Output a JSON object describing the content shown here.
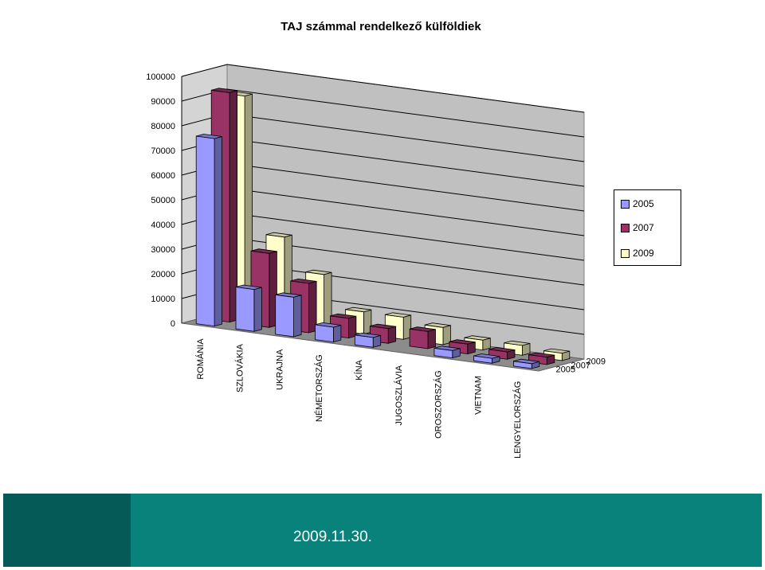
{
  "footer": {
    "date": "2009.11.30."
  },
  "chart_data": {
    "type": "bar",
    "title": "TAJ számmal rendelkező külföldiek",
    "categories": [
      "ROMÁNIA",
      "SZLOVÁKIA",
      "UKRAJNA",
      "NÉMETORSZÁG",
      "KÍNA",
      "JUGOSZLÁVIA",
      "OROSZORSZÁG",
      "VIETNAM",
      "LENGYELORSZÁG"
    ],
    "series": [
      {
        "name": "2005",
        "color": "#9999ff",
        "values": [
          76000,
          17000,
          16000,
          6000,
          4000,
          0,
          3000,
          2000,
          2000
        ]
      },
      {
        "name": "2007",
        "color": "#993366",
        "values": [
          93000,
          30000,
          20000,
          8000,
          6000,
          7000,
          4000,
          3000,
          3000
        ]
      },
      {
        "name": "2009",
        "color": "#ffffcc",
        "values": [
          90000,
          35000,
          22000,
          9000,
          9000,
          7000,
          4000,
          4000,
          3000
        ]
      }
    ],
    "yticks": [
      "0",
      "10000",
      "20000",
      "30000",
      "40000",
      "50000",
      "60000",
      "70000",
      "80000",
      "90000",
      "100000"
    ],
    "ylim": [
      0,
      100000
    ],
    "depth_labels": [
      "2009",
      "2007",
      "2005"
    ],
    "legend_position": "right",
    "grid": true
  }
}
